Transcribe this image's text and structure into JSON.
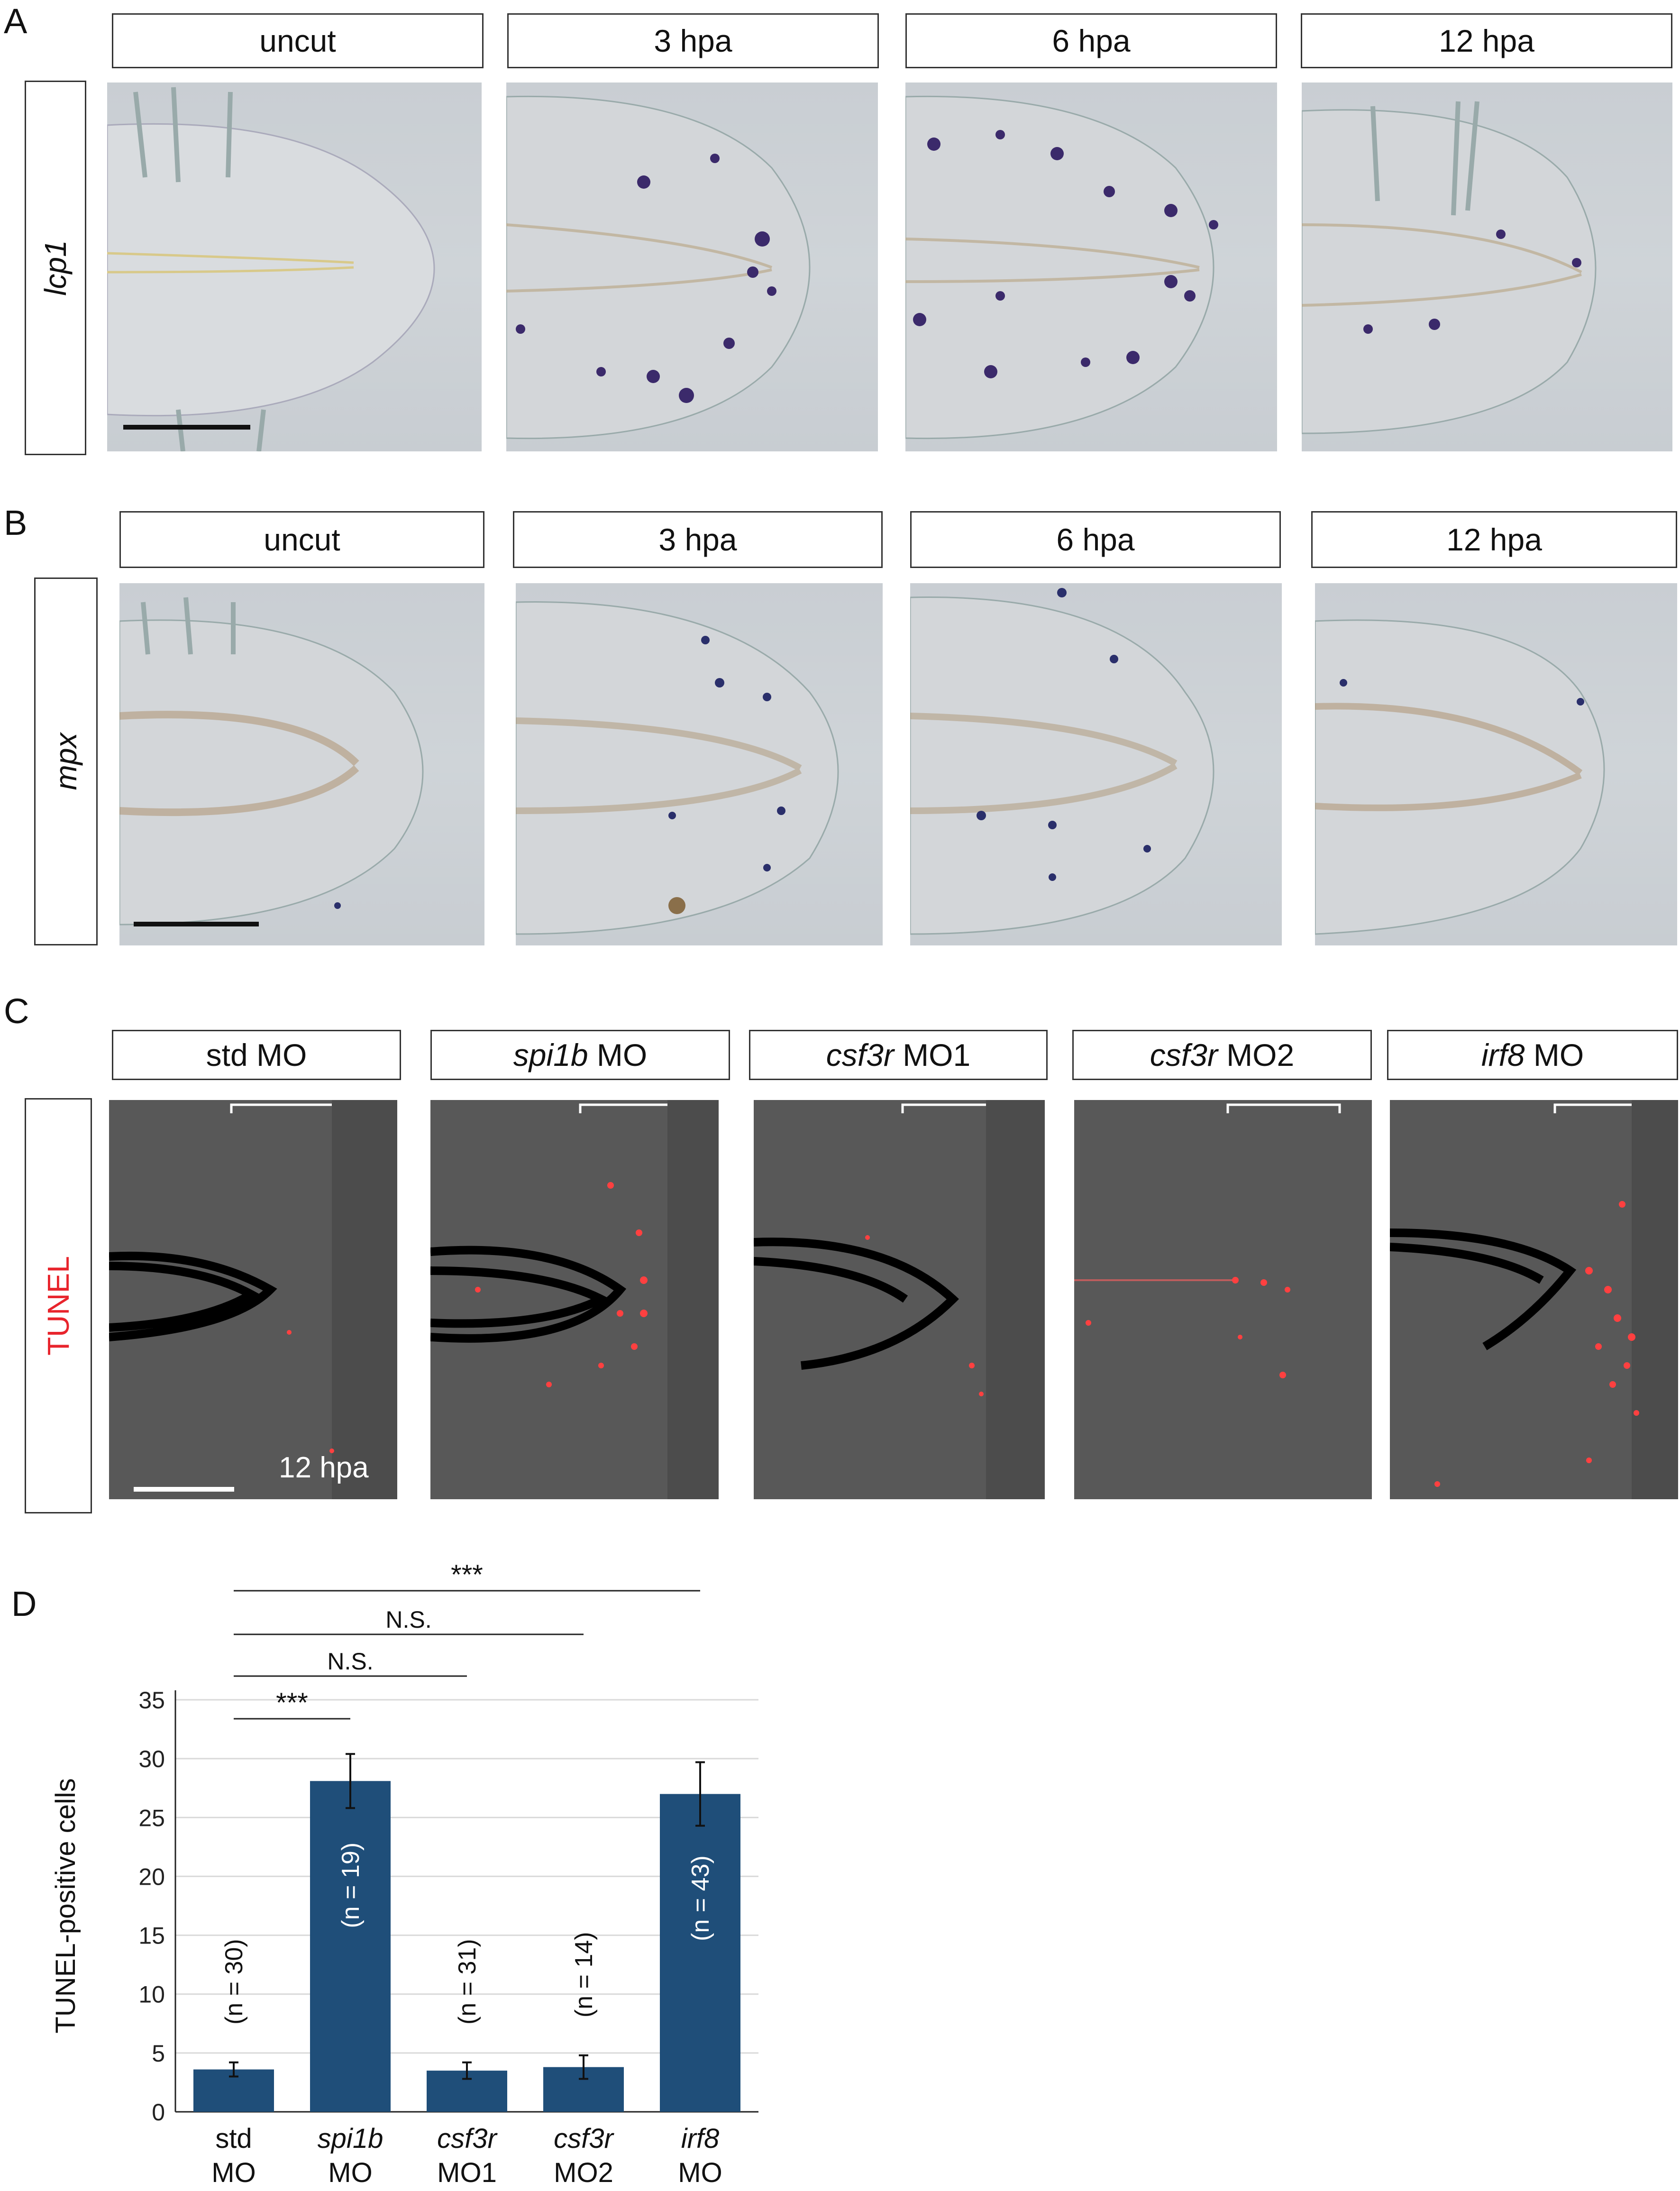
{
  "panels": {
    "A": {
      "letter": "A",
      "row_label": "lcp1",
      "columns": [
        "uncut",
        "3 hpa",
        "6 hpa",
        "12 hpa"
      ]
    },
    "B": {
      "letter": "B",
      "row_label": "mpx",
      "columns": [
        "uncut",
        "3 hpa",
        "6 hpa",
        "12 hpa"
      ]
    },
    "C": {
      "letter": "C",
      "row_label": "TUNEL",
      "row_label_color": "#e8242c",
      "time_label": "12 hpa",
      "columns": [
        {
          "italic": "",
          "plain": "std MO"
        },
        {
          "italic": "spi1b",
          "plain": " MO"
        },
        {
          "italic": "csf3r",
          "plain": " MO1"
        },
        {
          "italic": "csf3r",
          "plain": " MO2"
        },
        {
          "italic": "irf8",
          "plain": " MO"
        }
      ]
    },
    "D": {
      "letter": "D"
    }
  },
  "chart_data": {
    "type": "bar",
    "ylabel": "TUNEL-positive cells",
    "ylim": [
      0,
      35
    ],
    "yticks": [
      0,
      5,
      10,
      15,
      20,
      25,
      30,
      35
    ],
    "grid": true,
    "bar_color": "#1f4e79",
    "categories": [
      {
        "line1_italic": "",
        "line1": "std",
        "line2": "MO"
      },
      {
        "line1_italic": "spi1b",
        "line1": "",
        "line2": "MO"
      },
      {
        "line1_italic": "csf3r",
        "line1": "",
        "line2": "MO1"
      },
      {
        "line1_italic": "csf3r",
        "line1": "",
        "line2": "MO2"
      },
      {
        "line1_italic": "irf8",
        "line1": "",
        "line2": "MO"
      }
    ],
    "values": [
      3.6,
      28.1,
      3.5,
      3.8,
      27.0
    ],
    "errors": [
      0.6,
      2.3,
      0.7,
      1.0,
      2.7
    ],
    "n_labels": [
      "(n = 30)",
      "(n = 19)",
      "(n = 31)",
      "(n = 14)",
      "(n = 43)"
    ],
    "significance": [
      {
        "from": 0,
        "to": 1,
        "label": "***"
      },
      {
        "from": 0,
        "to": 2,
        "label": "N.S."
      },
      {
        "from": 0,
        "to": 3,
        "label": "N.S."
      },
      {
        "from": 0,
        "to": 4,
        "label": "***"
      }
    ]
  }
}
